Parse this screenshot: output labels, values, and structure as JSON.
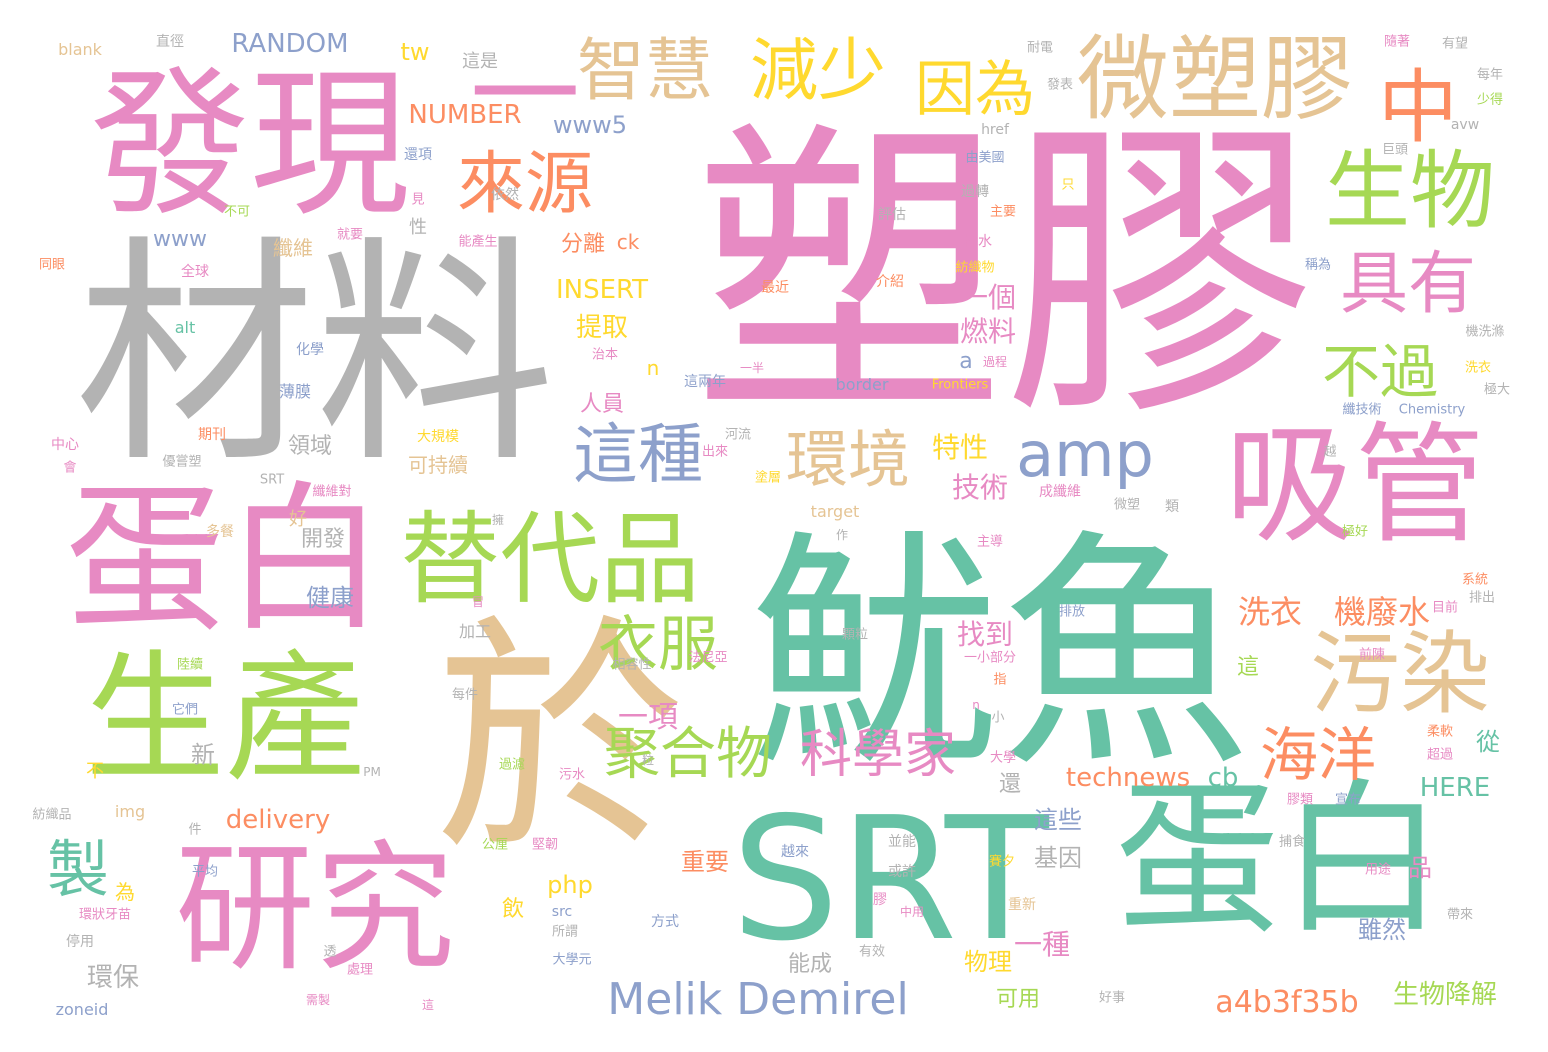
{
  "words": [
    {
      "text": "塑膠",
      "color": "#e78ac3"
    },
    {
      "text": "材料",
      "color": "#b3b3b3"
    },
    {
      "text": "魷魚",
      "color": "#66c2a5"
    },
    {
      "text": "於",
      "color": "#e5c494"
    },
    {
      "text": "發現",
      "color": "#e78ac3"
    },
    {
      "text": "蛋白",
      "color": "#e78ac3"
    },
    {
      "text": "SRT",
      "color": "#66c2a5"
    },
    {
      "text": "蛋白",
      "color": "#66c2a5"
    },
    {
      "text": "生產",
      "color": "#a6d854"
    },
    {
      "text": "研究",
      "color": "#e78ac3"
    },
    {
      "text": "吸管",
      "color": "#e78ac3"
    },
    {
      "text": "微塑膠",
      "color": "#e5c494"
    },
    {
      "text": "一",
      "color": "#e78ac3"
    },
    {
      "text": "替代品",
      "color": "#a6d854"
    },
    {
      "text": "污染",
      "color": "#e5c494"
    },
    {
      "text": "生物",
      "color": "#a6d854"
    },
    {
      "text": "智慧",
      "color": "#e5c494"
    },
    {
      "text": "減少",
      "color": "#ffd92f"
    },
    {
      "text": "因為",
      "color": "#ffd92f"
    },
    {
      "text": "中",
      "color": "#fc8d62"
    },
    {
      "text": "來源",
      "color": "#fc8d62"
    },
    {
      "text": "具有",
      "color": "#e78ac3"
    },
    {
      "text": "這種",
      "color": "#8da0cb"
    },
    {
      "text": "環境",
      "color": "#e5c494"
    },
    {
      "text": "amp",
      "color": "#8da0cb"
    },
    {
      "text": "不過",
      "color": "#a6d854"
    },
    {
      "text": "衣服",
      "color": "#a6d854"
    },
    {
      "text": "聚合物",
      "color": "#a6d854"
    },
    {
      "text": "科學家",
      "color": "#e78ac3"
    },
    {
      "text": "海洋",
      "color": "#fc8d62"
    },
    {
      "text": "製",
      "color": "#66c2a5"
    },
    {
      "text": "Melik Demirel",
      "color": "#8da0cb"
    },
    {
      "text": "洗衣",
      "color": "#fc8d62"
    },
    {
      "text": "機廢水",
      "color": "#fc8d62"
    },
    {
      "text": "technews",
      "color": "#fc8d62"
    },
    {
      "text": "cb",
      "color": "#66c2a5"
    },
    {
      "text": "HERE",
      "color": "#66c2a5"
    },
    {
      "text": "a4b3f35b",
      "color": "#fc8d62"
    },
    {
      "text": "生物降解",
      "color": "#a6d854"
    },
    {
      "text": "INSERT",
      "color": "#ffd92f"
    },
    {
      "text": "NUMBER",
      "color": "#fc8d62"
    },
    {
      "text": "RANDOM",
      "color": "#8da0cb"
    },
    {
      "text": "www5",
      "color": "#8da0cb"
    },
    {
      "text": "www",
      "color": "#8da0cb"
    },
    {
      "text": "delivery",
      "color": "#fc8d62"
    },
    {
      "text": "php",
      "color": "#ffd92f"
    },
    {
      "text": "一項",
      "color": "#e78ac3"
    },
    {
      "text": "提取",
      "color": "#ffd92f"
    },
    {
      "text": "分離",
      "color": "#fc8d62"
    },
    {
      "text": "ck",
      "color": "#fc8d62"
    },
    {
      "text": "一個",
      "color": "#e78ac3"
    },
    {
      "text": "燃料",
      "color": "#e78ac3"
    },
    {
      "text": "特性",
      "color": "#ffd92f"
    },
    {
      "text": "技術",
      "color": "#e78ac3"
    },
    {
      "text": "找到",
      "color": "#e78ac3"
    },
    {
      "text": "一種",
      "color": "#e78ac3"
    },
    {
      "text": "這些",
      "color": "#8da0cb"
    },
    {
      "text": "基因",
      "color": "#b3b3b3"
    },
    {
      "text": "重要",
      "color": "#fc8d62"
    },
    {
      "text": "飲",
      "color": "#ffd92f"
    },
    {
      "text": "物理",
      "color": "#ffd92f"
    },
    {
      "text": "可用",
      "color": "#a6d854"
    },
    {
      "text": "環保",
      "color": "#b3b3b3"
    },
    {
      "text": "健康",
      "color": "#8da0cb"
    },
    {
      "text": "開發",
      "color": "#b3b3b3"
    },
    {
      "text": "領域",
      "color": "#b3b3b3"
    },
    {
      "text": "可持續",
      "color": "#e5c494"
    },
    {
      "text": "人員",
      "color": "#e78ac3"
    },
    {
      "text": "雖然",
      "color": "#8da0cb"
    },
    {
      "text": "品",
      "color": "#e78ac3"
    },
    {
      "text": "從",
      "color": "#66c2a5"
    },
    {
      "text": "這",
      "color": "#a6d854"
    },
    {
      "text": "還",
      "color": "#b3b3b3"
    },
    {
      "text": "新",
      "color": "#b3b3b3"
    },
    {
      "text": "能成",
      "color": "#b3b3b3"
    },
    {
      "text": "tw",
      "color": "#ffd92f"
    },
    {
      "text": "纖維",
      "color": "#e5c494"
    },
    {
      "text": "a",
      "color": "#8da0cb"
    },
    {
      "text": "n",
      "color": "#ffd92f"
    },
    {
      "text": "為",
      "color": "#ffd92f"
    },
    {
      "text": "好",
      "color": "#e5c494"
    },
    {
      "text": "性",
      "color": "#b3b3b3"
    },
    {
      "text": "這是",
      "color": "#b3b3b3"
    },
    {
      "text": "blank",
      "color": "#e5c494"
    },
    {
      "text": "直徑",
      "color": "#b3b3b3"
    },
    {
      "text": "全球",
      "color": "#e78ac3"
    },
    {
      "text": "alt",
      "color": "#66c2a5"
    },
    {
      "text": "化學",
      "color": "#8da0cb"
    },
    {
      "text": "薄膜",
      "color": "#8da0cb"
    },
    {
      "text": "期刊",
      "color": "#fc8d62"
    },
    {
      "text": "中心",
      "color": "#e78ac3"
    },
    {
      "text": "不",
      "color": "#ffd92f"
    },
    {
      "text": "img",
      "color": "#e5c494"
    },
    {
      "text": "zoneid",
      "color": "#8da0cb"
    },
    {
      "text": "停用",
      "color": "#b3b3b3"
    },
    {
      "text": "多餐",
      "color": "#e5c494"
    },
    {
      "text": "加工",
      "color": "#b3b3b3"
    },
    {
      "text": "src",
      "color": "#8da0cb"
    },
    {
      "text": "方式",
      "color": "#8da0cb"
    },
    {
      "text": "border",
      "color": "#8da0cb"
    },
    {
      "text": "target",
      "color": "#e5c494"
    },
    {
      "text": "href",
      "color": "#b3b3b3"
    },
    {
      "text": "avw",
      "color": "#b3b3b3"
    },
    {
      "text": "Chemistry",
      "color": "#8da0cb"
    },
    {
      "text": "Frontiers",
      "color": "#ffd92f"
    },
    {
      "text": "PM",
      "color": "#b3b3b3"
    },
    {
      "text": "SRT",
      "color": "#b3b3b3"
    },
    {
      "text": "大規模",
      "color": "#ffd92f"
    },
    {
      "text": "最近",
      "color": "#fc8d62"
    },
    {
      "text": "介紹",
      "color": "#fc8d62"
    },
    {
      "text": "評估",
      "color": "#b3b3b3"
    },
    {
      "text": "杯水",
      "color": "#e78ac3"
    },
    {
      "text": "過轉",
      "color": "#b3b3b3"
    },
    {
      "text": "由美國",
      "color": "#8da0cb"
    },
    {
      "text": "依然",
      "color": "#b3b3b3"
    },
    {
      "text": "還項",
      "color": "#8da0cb"
    },
    {
      "text": "這兩年",
      "color": "#8da0cb"
    },
    {
      "text": "成纖維",
      "color": "#e78ac3"
    },
    {
      "text": "微塑",
      "color": "#b3b3b3"
    },
    {
      "text": "類",
      "color": "#b3b3b3"
    },
    {
      "text": "目前",
      "color": "#e78ac3"
    },
    {
      "text": "排放",
      "color": "#8da0cb"
    },
    {
      "text": "用途",
      "color": "#e78ac3"
    },
    {
      "text": "宣布",
      "color": "#8da0cb"
    },
    {
      "text": "捕食",
      "color": "#b3b3b3"
    },
    {
      "text": "好事",
      "color": "#b3b3b3"
    },
    {
      "text": "有效",
      "color": "#b3b3b3"
    },
    {
      "text": "重新",
      "color": "#e5c494"
    },
    {
      "text": "或許",
      "color": "#b3b3b3"
    },
    {
      "text": "並能",
      "color": "#b3b3b3"
    },
    {
      "text": "越來",
      "color": "#8da0cb"
    },
    {
      "text": "顆粒",
      "color": "#b3b3b3"
    },
    {
      "text": "法尼亞",
      "color": "#e78ac3"
    },
    {
      "text": "相容性",
      "color": "#b3b3b3"
    },
    {
      "text": "一小部分",
      "color": "#e78ac3"
    },
    {
      "text": "指",
      "color": "#fc8d62"
    },
    {
      "text": "小",
      "color": "#b3b3b3"
    },
    {
      "text": "大學",
      "color": "#e78ac3"
    },
    {
      "text": "每件",
      "color": "#b3b3b3"
    },
    {
      "text": "陸續",
      "color": "#a6d854"
    },
    {
      "text": "它們",
      "color": "#8da0cb"
    },
    {
      "text": "平均",
      "color": "#8da0cb"
    },
    {
      "text": "環狀牙苗",
      "color": "#e78ac3"
    },
    {
      "text": "所謂",
      "color": "#b3b3b3"
    },
    {
      "text": "大學元",
      "color": "#8da0cb"
    },
    {
      "text": "公厘",
      "color": "#a6d854"
    },
    {
      "text": "堅韌",
      "color": "#e78ac3"
    },
    {
      "text": "污水",
      "color": "#e78ac3"
    },
    {
      "text": "過濾",
      "color": "#a6d854"
    },
    {
      "text": "紡織品",
      "color": "#b3b3b3"
    },
    {
      "text": "件",
      "color": "#b3b3b3"
    },
    {
      "text": "同眼",
      "color": "#fc8d62"
    },
    {
      "text": "就要",
      "color": "#e78ac3"
    },
    {
      "text": "不可",
      "color": "#a6d854"
    },
    {
      "text": "見",
      "color": "#e78ac3"
    },
    {
      "text": "能產生",
      "color": "#e78ac3"
    },
    {
      "text": "紡織物",
      "color": "#ffd92f"
    },
    {
      "text": "主要",
      "color": "#fc8d62"
    },
    {
      "text": "只",
      "color": "#ffd92f"
    },
    {
      "text": "發表",
      "color": "#b3b3b3"
    },
    {
      "text": "耐電",
      "color": "#b3b3b3"
    },
    {
      "text": "隨著",
      "color": "#e78ac3"
    },
    {
      "text": "有望",
      "color": "#b3b3b3"
    },
    {
      "text": "每年",
      "color": "#b3b3b3"
    },
    {
      "text": "少得",
      "color": "#a6d854"
    },
    {
      "text": "巨頭",
      "color": "#b3b3b3"
    },
    {
      "text": "稱為",
      "color": "#8da0cb"
    },
    {
      "text": "機洗滌",
      "color": "#b3b3b3"
    },
    {
      "text": "洗衣",
      "color": "#ffd92f"
    },
    {
      "text": "極大",
      "color": "#b3b3b3"
    },
    {
      "text": "纖技術",
      "color": "#8da0cb"
    },
    {
      "text": "越",
      "color": "#b3b3b3"
    },
    {
      "text": "極好",
      "color": "#a6d854"
    },
    {
      "text": "系統",
      "color": "#fc8d62"
    },
    {
      "text": "排出",
      "color": "#b3b3b3"
    },
    {
      "text": "前陳",
      "color": "#e78ac3"
    },
    {
      "text": "柔軟",
      "color": "#fc8d62"
    },
    {
      "text": "超過",
      "color": "#e78ac3"
    },
    {
      "text": "膠類",
      "color": "#e78ac3"
    },
    {
      "text": "帶來",
      "color": "#b3b3b3"
    },
    {
      "text": "賽夕",
      "color": "#ffd92f"
    },
    {
      "text": "一半",
      "color": "#e78ac3"
    },
    {
      "text": "過程",
      "color": "#e78ac3"
    },
    {
      "text": "河流",
      "color": "#b3b3b3"
    },
    {
      "text": "出來",
      "color": "#e78ac3"
    },
    {
      "text": "塗層",
      "color": "#ffd92f"
    },
    {
      "text": "主導",
      "color": "#e78ac3"
    },
    {
      "text": "作",
      "color": "#b3b3b3"
    },
    {
      "text": "優嘗塑",
      "color": "#b3b3b3"
    },
    {
      "text": "會",
      "color": "#e78ac3"
    },
    {
      "text": "纖維對",
      "color": "#e78ac3"
    },
    {
      "text": "擁",
      "color": "#b3b3b3"
    },
    {
      "text": "冒",
      "color": "#e78ac3"
    },
    {
      "text": "粒",
      "color": "#b3b3b3"
    },
    {
      "text": "治本",
      "color": "#e78ac3"
    },
    {
      "text": "膠",
      "color": "#e78ac3"
    },
    {
      "text": "中用",
      "color": "#e78ac3"
    },
    {
      "text": "處理",
      "color": "#e78ac3"
    },
    {
      "text": "這",
      "color": "#e78ac3"
    },
    {
      "text": "n",
      "color": "#e78ac3"
    },
    {
      "text": "透",
      "color": "#b3b3b3"
    },
    {
      "text": "需製",
      "color": "#e78ac3"
    }
  ]
}
